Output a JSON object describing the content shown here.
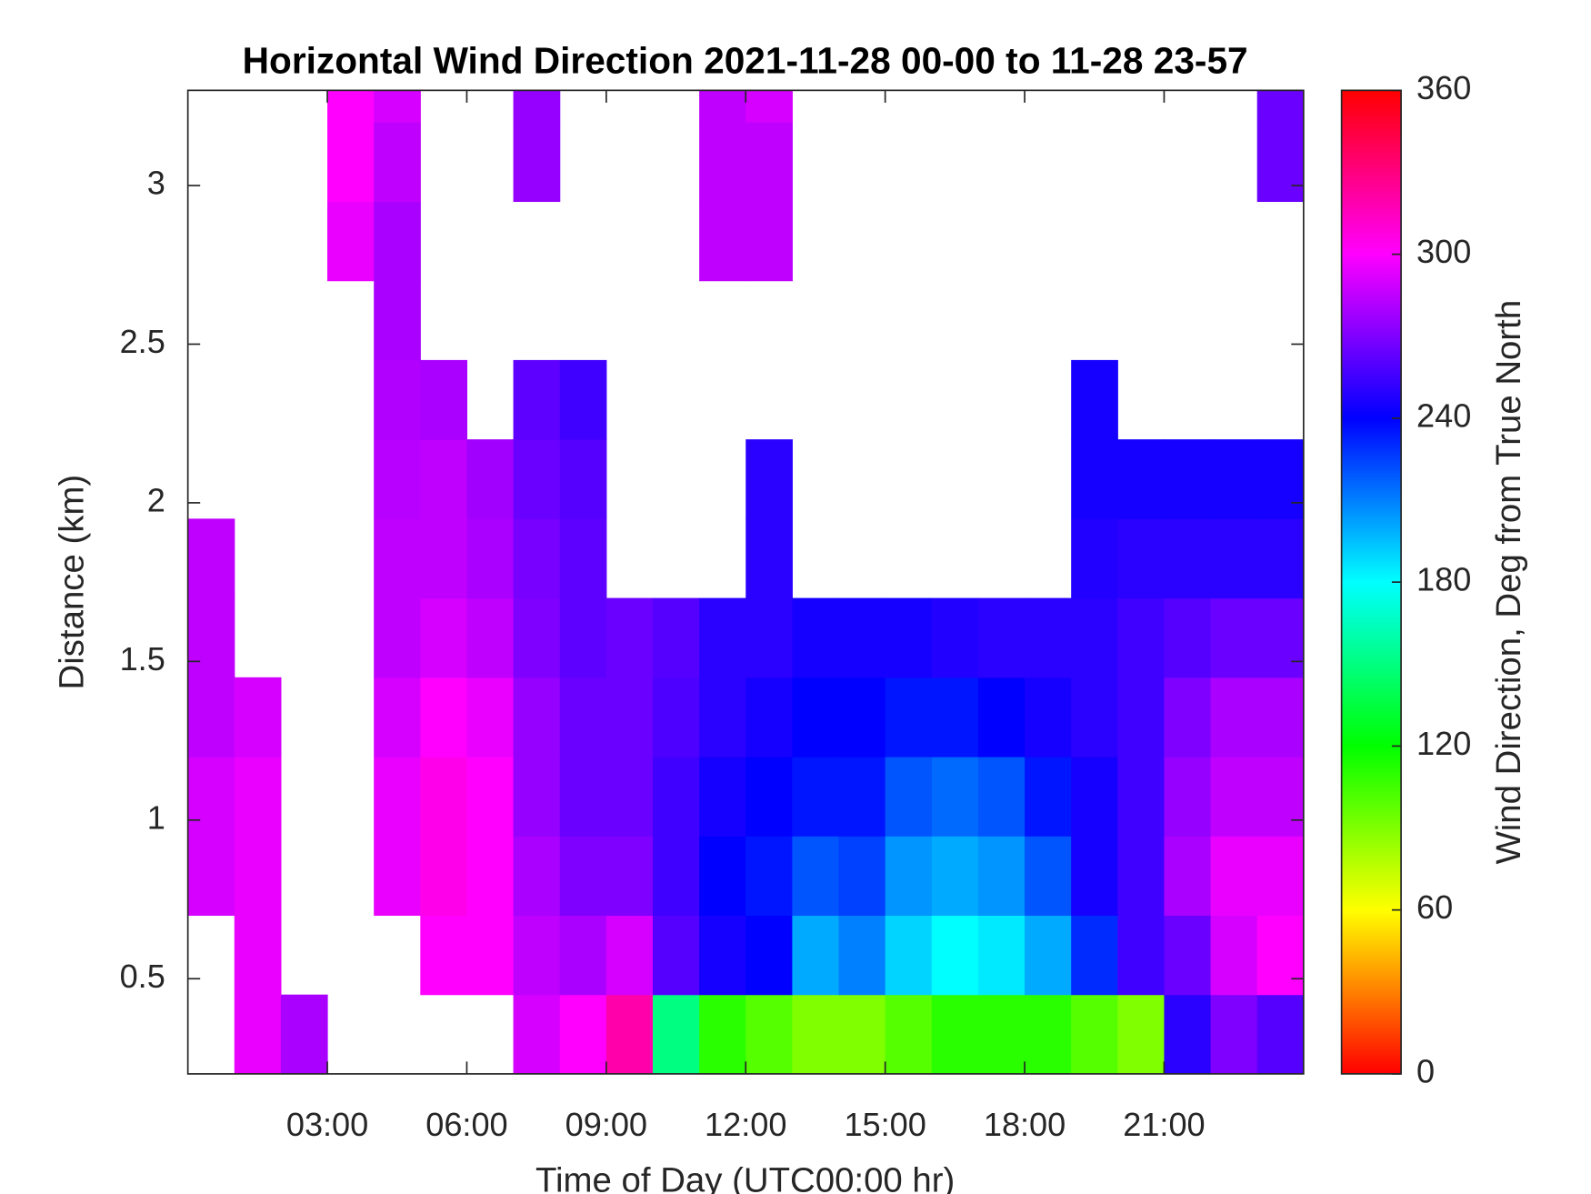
{
  "chart_data": {
    "type": "heatmap",
    "title": "Horizontal Wind Direction 2021-11-28 00-00 to 11-28 23-57",
    "x_label": "Time of Day (UTC00:00 hr)",
    "y_label": "Distance (km)",
    "colorbar_label": "Wind Direction, Deg from True North",
    "colormap": "hsv",
    "xlim": [
      0,
      24
    ],
    "xticks": [
      {
        "value": 3,
        "label": "03:00"
      },
      {
        "value": 6,
        "label": "06:00"
      },
      {
        "value": 9,
        "label": "09:00"
      },
      {
        "value": 12,
        "label": "12:00"
      },
      {
        "value": 15,
        "label": "15:00"
      },
      {
        "value": 18,
        "label": "18:00"
      },
      {
        "value": 21,
        "label": "21:00"
      }
    ],
    "ylim": [
      0.2,
      3.3
    ],
    "yticks": [
      0.5,
      1,
      1.5,
      2,
      2.5,
      3
    ],
    "clim": [
      0,
      360
    ],
    "cticks": [
      0,
      60,
      120,
      180,
      240,
      300,
      360
    ],
    "x": [
      0.5,
      1.5,
      2.5,
      3.5,
      4.5,
      5.5,
      6.5,
      7.5,
      8.5,
      9.5,
      10.5,
      11.5,
      12.5,
      13.5,
      14.5,
      15.5,
      16.5,
      17.5,
      18.5,
      19.5,
      20.5,
      21.5,
      22.5,
      23.5
    ],
    "y": [
      0.325,
      0.575,
      0.825,
      1.075,
      1.325,
      1.575,
      1.825,
      2.075,
      2.325,
      2.575,
      2.825,
      3.075,
      3.325
    ],
    "z": [
      [
        null,
        295,
        280,
        null,
        null,
        null,
        null,
        290,
        300,
        320,
        150,
        110,
        100,
        90,
        90,
        100,
        110,
        110,
        110,
        100,
        90,
        250,
        270,
        260
      ],
      [
        null,
        295,
        null,
        null,
        null,
        300,
        300,
        285,
        280,
        290,
        260,
        245,
        240,
        200,
        210,
        190,
        180,
        185,
        200,
        230,
        255,
        265,
        290,
        300
      ],
      [
        290,
        295,
        null,
        null,
        295,
        305,
        300,
        280,
        270,
        270,
        255,
        240,
        235,
        220,
        225,
        205,
        200,
        205,
        220,
        245,
        255,
        280,
        295,
        295
      ],
      [
        290,
        295,
        null,
        null,
        295,
        305,
        300,
        275,
        265,
        265,
        255,
        245,
        240,
        235,
        235,
        220,
        215,
        220,
        235,
        245,
        255,
        275,
        285,
        285
      ],
      [
        285,
        290,
        null,
        null,
        290,
        300,
        295,
        275,
        265,
        265,
        258,
        250,
        245,
        240,
        240,
        235,
        235,
        240,
        245,
        250,
        255,
        270,
        280,
        280
      ],
      [
        285,
        null,
        null,
        null,
        285,
        290,
        285,
        270,
        262,
        265,
        260,
        250,
        250,
        245,
        245,
        245,
        248,
        250,
        250,
        250,
        255,
        260,
        265,
        265
      ],
      [
        285,
        null,
        null,
        null,
        285,
        285,
        280,
        268,
        262,
        null,
        null,
        null,
        250,
        null,
        null,
        null,
        null,
        null,
        null,
        248,
        250,
        250,
        250,
        250
      ],
      [
        null,
        null,
        null,
        null,
        283,
        285,
        278,
        265,
        260,
        null,
        null,
        null,
        250,
        null,
        null,
        null,
        null,
        null,
        null,
        245,
        245,
        245,
        245,
        245
      ],
      [
        null,
        null,
        null,
        null,
        282,
        280,
        null,
        262,
        255,
        null,
        null,
        null,
        null,
        null,
        null,
        null,
        null,
        null,
        null,
        245,
        null,
        null,
        null,
        null
      ],
      [
        null,
        null,
        null,
        null,
        280,
        null,
        null,
        null,
        null,
        null,
        null,
        null,
        null,
        null,
        null,
        null,
        null,
        null,
        null,
        null,
        null,
        null,
        null,
        null
      ],
      [
        null,
        null,
        null,
        295,
        280,
        null,
        null,
        null,
        null,
        null,
        null,
        285,
        285,
        null,
        null,
        null,
        null,
        null,
        null,
        null,
        null,
        null,
        null,
        null
      ],
      [
        null,
        null,
        null,
        300,
        285,
        null,
        null,
        275,
        null,
        null,
        null,
        285,
        285,
        null,
        null,
        null,
        null,
        null,
        null,
        null,
        null,
        null,
        null,
        265
      ],
      [
        null,
        null,
        null,
        300,
        290,
        null,
        null,
        275,
        null,
        null,
        null,
        285,
        290,
        null,
        null,
        null,
        null,
        null,
        null,
        null,
        null,
        null,
        null,
        265
      ]
    ]
  }
}
